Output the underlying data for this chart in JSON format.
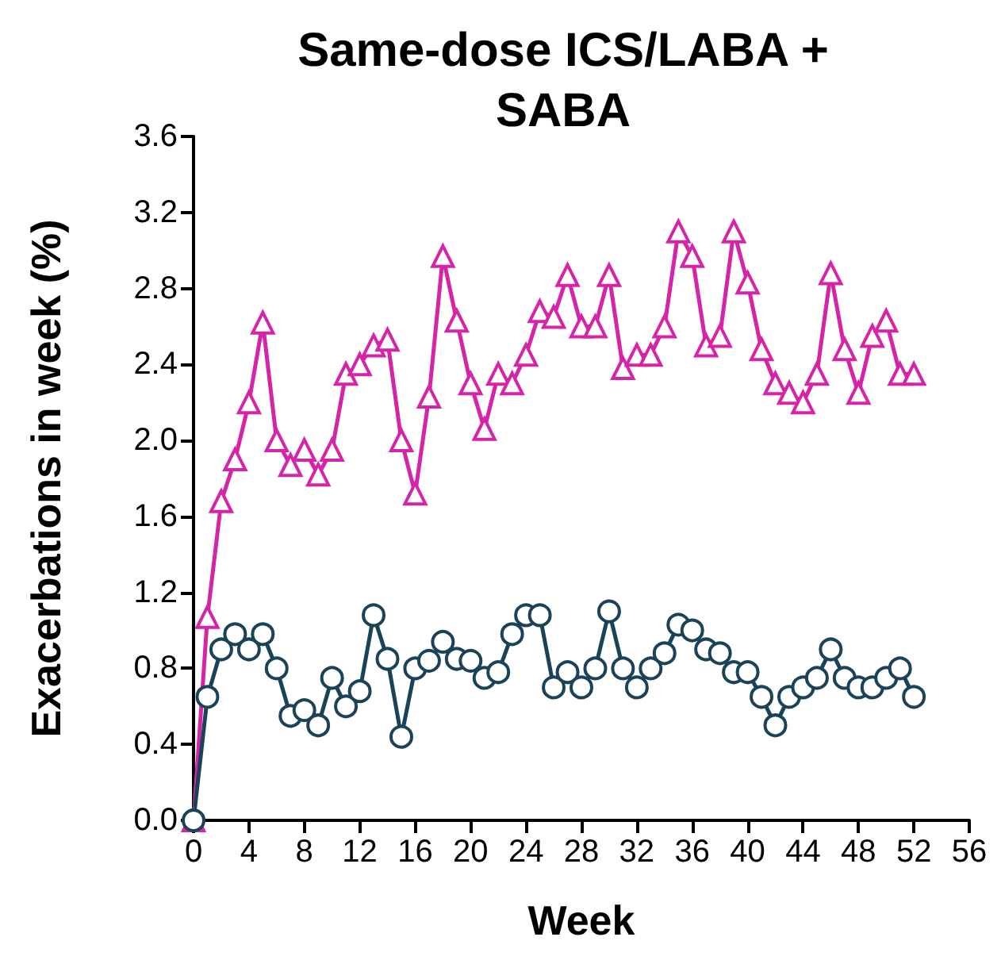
{
  "chart_data": {
    "type": "line",
    "title": "Same-dose ICS/LABA +\nSABA",
    "xlabel": "Week",
    "ylabel": "Exacerbations in week (%)",
    "x": [
      0,
      1,
      2,
      3,
      4,
      5,
      6,
      7,
      8,
      9,
      10,
      11,
      12,
      13,
      14,
      15,
      16,
      17,
      18,
      19,
      20,
      21,
      22,
      23,
      24,
      25,
      26,
      27,
      28,
      29,
      30,
      31,
      32,
      33,
      34,
      35,
      36,
      37,
      38,
      39,
      40,
      41,
      42,
      43,
      44,
      45,
      46,
      47,
      48,
      49,
      50,
      51,
      52
    ],
    "series": [
      {
        "color": "#d624a8",
        "marker": "triangle",
        "values": [
          0,
          1.07,
          1.68,
          1.9,
          2.2,
          2.62,
          2.0,
          1.87,
          1.95,
          1.82,
          1.95,
          2.35,
          2.4,
          2.5,
          2.53,
          2.0,
          1.72,
          2.23,
          2.97,
          2.63,
          2.3,
          2.06,
          2.35,
          2.3,
          2.45,
          2.68,
          2.65,
          2.87,
          2.6,
          2.6,
          2.87,
          2.38,
          2.45,
          2.45,
          2.6,
          3.1,
          2.97,
          2.5,
          2.55,
          3.1,
          2.83,
          2.48,
          2.3,
          2.25,
          2.2,
          2.35,
          2.88,
          2.48,
          2.25,
          2.55,
          2.63,
          2.35,
          2.35
        ]
      },
      {
        "color": "#1b4358",
        "marker": "circle",
        "values": [
          0,
          0.65,
          0.9,
          0.98,
          0.9,
          0.98,
          0.8,
          0.55,
          0.58,
          0.5,
          0.75,
          0.6,
          0.68,
          1.08,
          0.85,
          0.44,
          0.8,
          0.84,
          0.94,
          0.85,
          0.84,
          0.75,
          0.78,
          0.98,
          1.08,
          1.08,
          0.7,
          0.78,
          0.7,
          0.8,
          1.1,
          0.8,
          0.7,
          0.8,
          0.88,
          1.03,
          1.0,
          0.9,
          0.88,
          0.78,
          0.78,
          0.65,
          0.5,
          0.65,
          0.7,
          0.75,
          0.9,
          0.75,
          0.7,
          0.7,
          0.75,
          0.8,
          0.65
        ]
      }
    ],
    "xlim": [
      0,
      56
    ],
    "xticks": [
      0,
      4,
      8,
      12,
      16,
      20,
      24,
      28,
      32,
      36,
      40,
      44,
      48,
      52,
      56
    ],
    "ylim": [
      0,
      3.6
    ],
    "yticks": [
      {
        "value": 0,
        "label": "0.0"
      },
      {
        "value": 0.4,
        "label": "0.4"
      },
      {
        "value": 0.8,
        "label": "0.8"
      },
      {
        "value": 1.2,
        "label": "1.2"
      },
      {
        "value": 1.6,
        "label": "1.6"
      },
      {
        "value": 2,
        "label": "2.0"
      },
      {
        "value": 2.4,
        "label": "2.4"
      },
      {
        "value": 2.8,
        "label": "2.8"
      },
      {
        "value": 3.2,
        "label": "3.2"
      },
      {
        "value": 3.6,
        "label": "3.6"
      }
    ],
    "grid": false,
    "line_style": "solid"
  }
}
